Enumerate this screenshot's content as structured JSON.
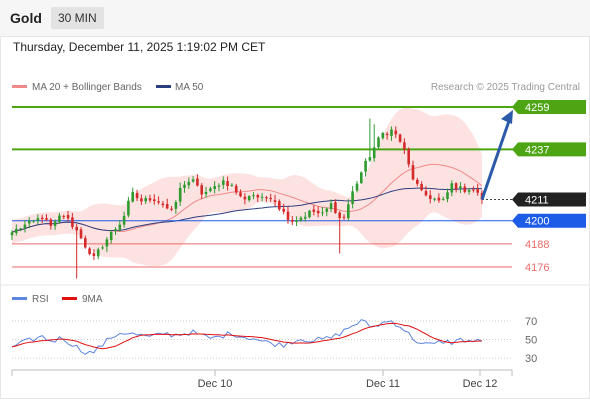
{
  "header": {
    "instrument": "Gold",
    "timeframe": "30 MIN"
  },
  "datetime": "Thursday, December 11, 2025 1:19:02 PM CET",
  "legend": {
    "ma20_label": "MA 20 + Bollinger Bands",
    "ma50_label": "MA 50",
    "copyright": "Research © 2025 Trading Central",
    "rsi_label": "RSI",
    "ma9_label": "9MA"
  },
  "colors": {
    "bull": "#2e9b2e",
    "bear": "#d42a2a",
    "ma20": "#f08a8a",
    "ma50": "#2c3e80",
    "bands_fill": "#fde2e2",
    "green_level": "#4ea514",
    "blue_level": "#1c5ce6",
    "red_level": "#ec6a6a",
    "arrow": "#2a5aa8",
    "rsi": "#5c85e0",
    "rsi_ma": "#e01010"
  },
  "chart_data": [
    {
      "type": "candlestick",
      "title": "Gold",
      "timeframe": "30 MIN",
      "ylim": [
        4168,
        4268
      ],
      "x_tick_labels": [
        "Dec 10",
        "Dec 11",
        "Dec 12"
      ],
      "levels": [
        {
          "value": 4259,
          "label": "4259",
          "kind": "resistance"
        },
        {
          "value": 4237,
          "label": "4237",
          "kind": "resistance"
        },
        {
          "value": 4211,
          "label": "4211",
          "kind": "last_price"
        },
        {
          "value": 4200,
          "label": "4200",
          "kind": "pivot"
        },
        {
          "value": 4188,
          "label": "4188",
          "kind": "support"
        },
        {
          "value": 4176,
          "label": "4176",
          "kind": "support"
        }
      ],
      "close_anchors": [
        4194,
        4197,
        4199,
        4202,
        4196,
        4204,
        4198,
        4191,
        4179,
        4187,
        4194,
        4200,
        4214,
        4210,
        4212,
        4209,
        4204,
        4219,
        4221,
        4214,
        4216,
        4221,
        4218,
        4211,
        4214,
        4211,
        4213,
        4205,
        4200,
        4202,
        4205,
        4203,
        4209,
        4199,
        4214,
        4226,
        4236,
        4245,
        4247,
        4240,
        4223,
        4214,
        4212,
        4209,
        4219,
        4216,
        4217,
        4211
      ],
      "forecast": {
        "from": 4211,
        "to": 4259
      },
      "series": [
        {
          "name": "MA 20 + Bollinger Bands"
        },
        {
          "name": "MA 50"
        }
      ]
    },
    {
      "type": "line",
      "title": "RSI",
      "ylim": [
        25,
        78
      ],
      "y_ticks": [
        70,
        50,
        30
      ],
      "anchors": [
        42,
        46,
        50,
        53,
        48,
        52,
        45,
        38,
        35,
        44,
        53,
        58,
        56,
        54,
        52,
        57,
        55,
        56,
        58,
        54,
        51,
        54,
        57,
        53,
        52,
        48,
        46,
        44,
        48,
        51,
        49,
        50,
        52,
        58,
        65,
        70,
        63,
        68,
        70,
        63,
        52,
        45,
        44,
        48,
        47,
        50,
        48,
        48
      ],
      "series": [
        {
          "name": "RSI"
        },
        {
          "name": "9MA"
        }
      ]
    }
  ]
}
